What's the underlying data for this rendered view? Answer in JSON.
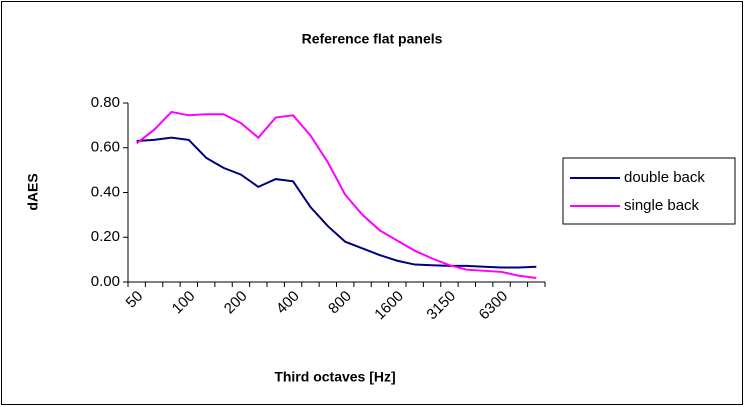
{
  "chart_data": {
    "type": "line",
    "title": "Reference flat panels",
    "x_label": "Third octaves [Hz]",
    "y_label": "dAES",
    "categories": [
      "50",
      null,
      null,
      "100",
      null,
      null,
      "200",
      null,
      null,
      "400",
      null,
      null,
      "800",
      null,
      null,
      "1600",
      null,
      null,
      "3150",
      null,
      null,
      "6300",
      null,
      null
    ],
    "series": [
      {
        "name": "double back",
        "color": "#000080",
        "values": [
          0.63,
          0.635,
          0.645,
          0.635,
          0.555,
          0.51,
          0.48,
          0.425,
          0.46,
          0.45,
          0.335,
          0.25,
          0.18,
          0.15,
          0.12,
          0.095,
          0.078,
          0.075,
          0.072,
          0.072,
          0.068,
          0.065,
          0.065,
          0.068
        ]
      },
      {
        "name": "single back",
        "color": "#ff00ff",
        "values": [
          0.62,
          0.68,
          0.76,
          0.745,
          0.75,
          0.75,
          0.71,
          0.645,
          0.735,
          0.745,
          0.655,
          0.535,
          0.39,
          0.3,
          0.23,
          0.185,
          0.14,
          0.105,
          0.075,
          0.055,
          0.05,
          0.045,
          0.028,
          0.018
        ]
      }
    ],
    "ylim": [
      0,
      0.8
    ],
    "yticks": [
      {
        "value": 0,
        "label": "0.00"
      },
      {
        "value": 0.2,
        "label": "0.20"
      },
      {
        "value": 0.4,
        "label": "0.40"
      },
      {
        "value": 0.6,
        "label": "0.60"
      },
      {
        "value": 0.8,
        "label": "0.80"
      }
    ],
    "legend": "right"
  }
}
